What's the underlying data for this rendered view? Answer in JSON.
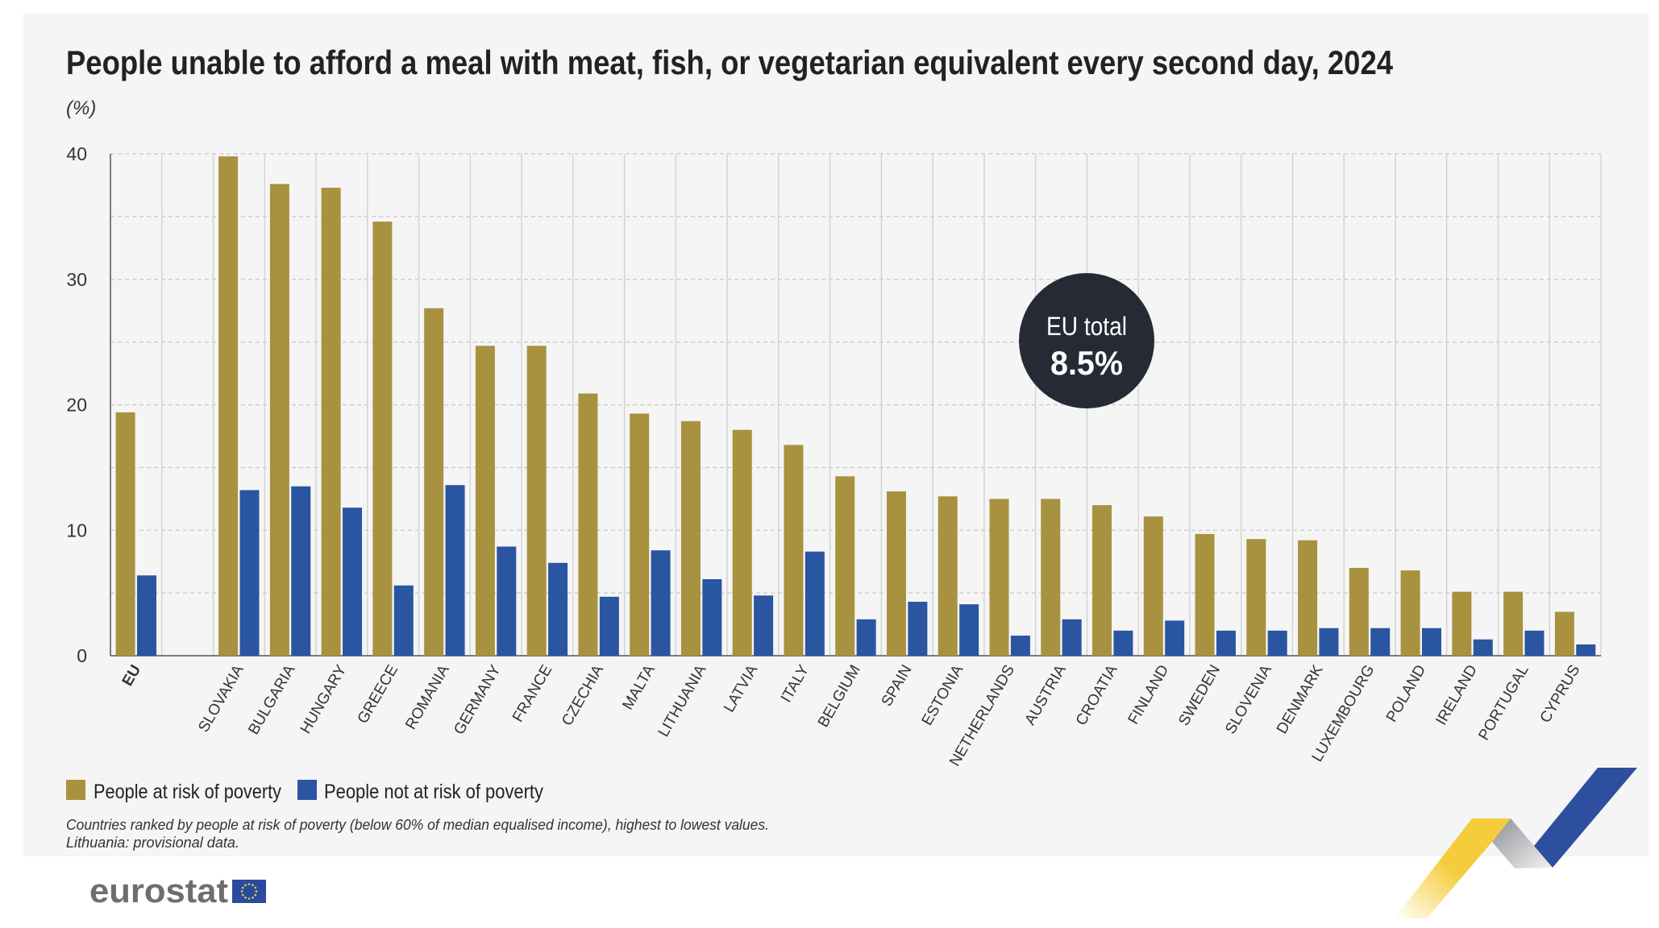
{
  "chart_data": {
    "type": "bar",
    "title": "People unable to afford a meal with meat, fish, or vegetarian equivalent every second day, 2024",
    "unit_label": "(%)",
    "ylim": [
      0,
      40
    ],
    "yticks": [
      "0",
      "10",
      "20",
      "30",
      "40"
    ],
    "grid": true,
    "legend_placement": "bottom-left",
    "categories": [
      "EU",
      "SLOVAKIA",
      "BULGARIA",
      "HUNGARY",
      "GREECE",
      "ROMANIA",
      "GERMANY",
      "FRANCE",
      "CZECHIA",
      "MALTA",
      "LITHUANIA",
      "LATVIA",
      "ITALY",
      "BELGIUM",
      "SPAIN",
      "ESTONIA",
      "NETHERLANDS",
      "AUSTRIA",
      "CROATIA",
      "FINLAND",
      "SWEDEN",
      "SLOVENIA",
      "DENMARK",
      "LUXEMBOURG",
      "POLAND",
      "IRELAND",
      "PORTUGAL",
      "CYPRUS"
    ],
    "series": [
      {
        "name": "People at risk of poverty",
        "color": "#a8923f",
        "values": [
          19.4,
          39.8,
          37.6,
          37.3,
          34.6,
          27.7,
          24.7,
          24.7,
          20.9,
          19.3,
          18.7,
          18.0,
          16.8,
          14.3,
          13.1,
          12.7,
          12.5,
          12.5,
          12.0,
          11.1,
          9.7,
          9.3,
          9.2,
          7.0,
          6.8,
          5.1,
          5.1,
          3.5
        ]
      },
      {
        "name": "People not at risk of poverty",
        "color": "#2a55a0",
        "values": [
          6.4,
          13.2,
          13.5,
          11.8,
          5.6,
          13.6,
          8.7,
          7.4,
          4.7,
          8.4,
          6.1,
          4.8,
          8.3,
          2.9,
          4.3,
          4.1,
          1.6,
          2.9,
          2.0,
          2.8,
          2.0,
          2.0,
          2.2,
          2.2,
          2.2,
          1.3,
          2.0,
          0.9
        ]
      }
    ],
    "annotation": {
      "label": "EU total",
      "value": "8.5%"
    },
    "footnotes": [
      "Countries ranked by people at risk of poverty (below 60% of median equalised income), highest to lowest values.",
      "Lithuania: provisional data."
    ]
  },
  "branding": {
    "logo_text": "eurostat"
  }
}
